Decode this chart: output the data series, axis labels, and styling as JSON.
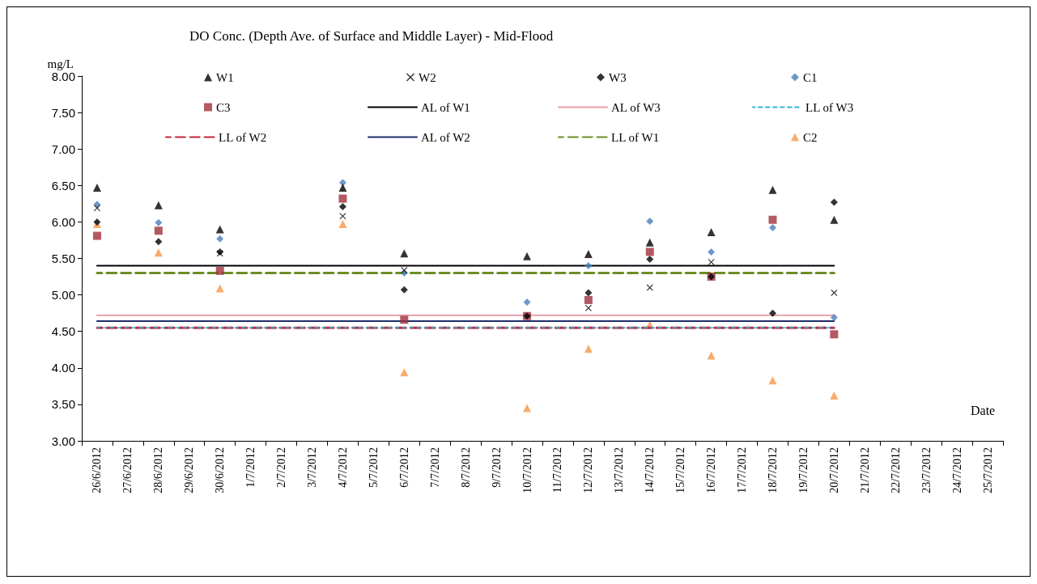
{
  "chart_data": {
    "type": "scatter",
    "title": "DO Conc. (Depth Ave. of Surface and Middle Layer) - Mid-Flood",
    "ylabel": "mg/L",
    "xlabel": "Date",
    "categories": [
      "26/6/2012",
      "27/6/2012",
      "28/6/2012",
      "29/6/2012",
      "30/6/2012",
      "1/7/2012",
      "2/7/2012",
      "3/7/2012",
      "4/7/2012",
      "5/7/2012",
      "6/7/2012",
      "7/7/2012",
      "8/7/2012",
      "9/7/2012",
      "10/7/2012",
      "11/7/2012",
      "12/7/2012",
      "13/7/2012",
      "14/7/2012",
      "15/7/2012",
      "16/7/2012",
      "17/7/2012",
      "18/7/2012",
      "19/7/2012",
      "20/7/2012",
      "21/7/2012",
      "22/7/2012",
      "23/7/2012",
      "24/7/2012",
      "25/7/2012"
    ],
    "ylim": [
      3,
      8
    ],
    "yticks": [
      {
        "value": 3,
        "label": "3.00"
      },
      {
        "value": 3.5,
        "label": "3.50"
      },
      {
        "value": 4,
        "label": "4.00"
      },
      {
        "value": 4.5,
        "label": "4.50"
      },
      {
        "value": 5,
        "label": "5.00"
      },
      {
        "value": 5.5,
        "label": "5.50"
      },
      {
        "value": 6,
        "label": "6.00"
      },
      {
        "value": 6.5,
        "label": "6.50"
      },
      {
        "value": 7,
        "label": "7.00"
      },
      {
        "value": 7.5,
        "label": "7.50"
      },
      {
        "value": 8,
        "label": "8.00"
      }
    ],
    "grid": false,
    "legend": "top",
    "series": [
      {
        "name": "W1",
        "marker": "triangle",
        "color": "#000000",
        "values": [
          6.47,
          null,
          6.23,
          null,
          5.9,
          null,
          null,
          null,
          6.47,
          null,
          5.57,
          null,
          null,
          null,
          5.53,
          null,
          5.56,
          null,
          5.72,
          null,
          5.86,
          null,
          6.44,
          null,
          6.03,
          null,
          null,
          null,
          null,
          null
        ]
      },
      {
        "name": "W2",
        "marker": "cross",
        "color": "#000000",
        "values": [
          6.19,
          null,
          null,
          null,
          5.57,
          null,
          null,
          null,
          6.08,
          null,
          5.34,
          null,
          null,
          null,
          null,
          null,
          4.82,
          null,
          5.1,
          null,
          5.45,
          null,
          null,
          null,
          5.03,
          null,
          null,
          null,
          null,
          null
        ]
      },
      {
        "name": "W3",
        "marker": "diamond",
        "color": "#000000",
        "values": [
          6.0,
          null,
          5.73,
          null,
          5.59,
          null,
          null,
          null,
          6.21,
          null,
          5.07,
          null,
          null,
          null,
          4.71,
          null,
          5.03,
          null,
          5.49,
          null,
          5.25,
          null,
          4.75,
          null,
          6.27,
          null,
          null,
          null,
          null,
          null
        ]
      },
      {
        "name": "C1",
        "marker": "diamond",
        "color": "#4a7ebb",
        "values": [
          6.24,
          null,
          5.99,
          null,
          5.77,
          null,
          null,
          null,
          6.54,
          null,
          5.3,
          null,
          null,
          null,
          4.9,
          null,
          5.4,
          null,
          6.01,
          null,
          5.59,
          null,
          5.92,
          null,
          4.69,
          null,
          null,
          null,
          null,
          null
        ]
      },
      {
        "name": "C3",
        "marker": "square",
        "color": "#a0303c",
        "values": [
          5.81,
          null,
          5.88,
          null,
          5.33,
          null,
          null,
          null,
          6.32,
          null,
          4.66,
          null,
          null,
          null,
          4.71,
          null,
          4.93,
          null,
          5.59,
          null,
          5.25,
          null,
          6.03,
          null,
          4.46,
          null,
          null,
          null,
          null,
          null
        ]
      },
      {
        "name": "AL of W1",
        "type": "line",
        "line_style": "solid",
        "color": "#000000",
        "values": [
          5.4,
          5.4,
          5.4,
          5.4,
          5.4,
          5.4,
          5.4,
          5.4,
          5.4,
          5.4,
          5.4,
          5.4,
          5.4,
          5.4,
          5.4,
          5.4,
          5.4,
          5.4,
          5.4,
          5.4,
          5.4,
          5.4,
          5.4,
          5.4,
          5.4,
          null,
          null,
          null,
          null,
          null
        ]
      },
      {
        "name": "AL of W3",
        "type": "line",
        "line_style": "solid",
        "color": "#e6a0a8",
        "values": [
          4.72,
          4.72,
          4.72,
          4.72,
          4.72,
          4.72,
          4.72,
          4.72,
          4.72,
          4.72,
          4.72,
          4.72,
          4.72,
          4.72,
          4.72,
          4.72,
          4.72,
          4.72,
          4.72,
          4.72,
          4.72,
          4.72,
          4.72,
          4.72,
          4.72,
          null,
          null,
          null,
          null,
          null
        ]
      },
      {
        "name": "LL of W3",
        "type": "line",
        "line_style": "dashed",
        "color": "#33b5d6",
        "values": [
          4.55,
          4.55,
          4.55,
          4.55,
          4.55,
          4.55,
          4.55,
          4.55,
          4.55,
          4.55,
          4.55,
          4.55,
          4.55,
          4.55,
          4.55,
          4.55,
          4.55,
          4.55,
          4.55,
          4.55,
          4.55,
          4.55,
          4.55,
          4.55,
          4.55,
          null,
          null,
          null,
          null,
          null
        ]
      },
      {
        "name": "LL of W2",
        "type": "line",
        "line_style": "dashed",
        "color": "#c0283c",
        "values": [
          4.55,
          4.55,
          4.55,
          4.55,
          4.55,
          4.55,
          4.55,
          4.55,
          4.55,
          4.55,
          4.55,
          4.55,
          4.55,
          4.55,
          4.55,
          4.55,
          4.55,
          4.55,
          4.55,
          4.55,
          4.55,
          4.55,
          4.55,
          4.55,
          4.55,
          null,
          null,
          null,
          null,
          null
        ]
      },
      {
        "name": "AL of W2",
        "type": "line",
        "line_style": "solid",
        "color": "#1f2d6b",
        "values": [
          4.64,
          4.64,
          4.64,
          4.64,
          4.64,
          4.64,
          4.64,
          4.64,
          4.64,
          4.64,
          4.64,
          4.64,
          4.64,
          4.64,
          4.64,
          4.64,
          4.64,
          4.64,
          4.64,
          4.64,
          4.64,
          4.64,
          4.64,
          4.64,
          4.64,
          null,
          null,
          null,
          null,
          null
        ]
      },
      {
        "name": "LL of W1",
        "type": "line",
        "line_style": "dashed",
        "color": "#6b8e23",
        "values": [
          5.3,
          5.3,
          5.3,
          5.3,
          5.3,
          5.3,
          5.3,
          5.3,
          5.3,
          5.3,
          5.3,
          5.3,
          5.3,
          5.3,
          5.3,
          5.3,
          5.3,
          5.3,
          5.3,
          5.3,
          5.3,
          5.3,
          5.3,
          5.3,
          5.3,
          null,
          null,
          null,
          null,
          null
        ]
      },
      {
        "name": "C2",
        "marker": "triangle",
        "color": "#f79646",
        "values": [
          5.97,
          null,
          5.58,
          null,
          5.09,
          null,
          null,
          null,
          5.97,
          null,
          3.94,
          null,
          null,
          null,
          3.45,
          null,
          4.26,
          null,
          4.59,
          null,
          4.17,
          null,
          3.83,
          null,
          3.62,
          null,
          null,
          null,
          null,
          null
        ]
      }
    ]
  }
}
